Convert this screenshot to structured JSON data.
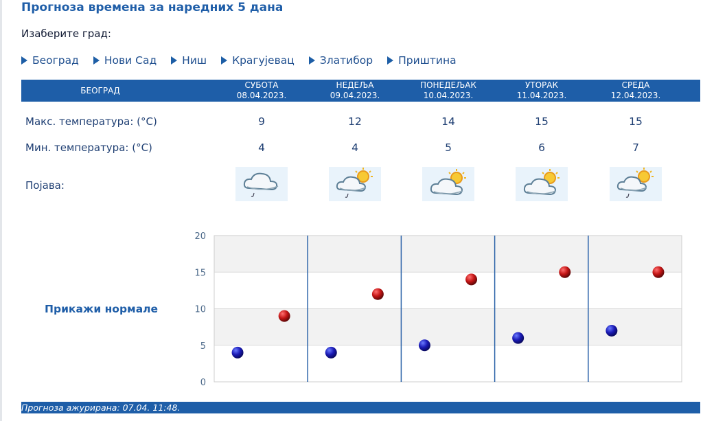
{
  "title": "Прогноза времена за наредних 5 дана",
  "select_label": "Изаберите град:",
  "cities": [
    "Београд",
    "Нови Сад",
    "Ниш",
    "Крагујевац",
    "Златибор",
    "Приштина"
  ],
  "table": {
    "city": "БЕОГРАД",
    "days": [
      {
        "name": "СУБОТА",
        "date": "08.04.2023."
      },
      {
        "name": "НЕДЕЉА",
        "date": "09.04.2023."
      },
      {
        "name": "ПОНЕДЕЉАК",
        "date": "10.04.2023."
      },
      {
        "name": "УТОРАК",
        "date": "11.04.2023."
      },
      {
        "name": "СРЕДА",
        "date": "12.04.2023."
      }
    ],
    "max_label": "Макс. температура: (°C)",
    "min_label": "Мин. температура: (°C)",
    "phen_label": "Појава:",
    "max": [
      "9",
      "12",
      "14",
      "15",
      "15"
    ],
    "min": [
      "4",
      "4",
      "5",
      "6",
      "7"
    ],
    "icons": [
      "cloud-rain-icon",
      "cloud-sun-rain-icon",
      "cloud-sun-icon",
      "cloud-sun-icon",
      "cloud-sun-rain-icon"
    ]
  },
  "normals_link": "Прикажи нормале",
  "chart_data": {
    "type": "scatter",
    "categories": [
      "08.04.2023.",
      "09.04.2023.",
      "10.04.2023.",
      "11.04.2023.",
      "12.04.2023."
    ],
    "series": [
      {
        "values": [
          4,
          4,
          5,
          6,
          7
        ],
        "color": "#1a1ab5"
      },
      {
        "values": [
          9,
          12,
          14,
          15,
          15
        ],
        "color": "#c41515"
      }
    ],
    "ylim": [
      0,
      20
    ],
    "yticks": [
      "0",
      "5",
      "10",
      "15",
      "20"
    ],
    "grid": true
  },
  "footer": "Прогноза ажурирана:  07.04. 11:48.",
  "colors": {
    "accent": "#1e5ea8",
    "min_marker": "#1a1ab5",
    "max_marker": "#c41515"
  }
}
